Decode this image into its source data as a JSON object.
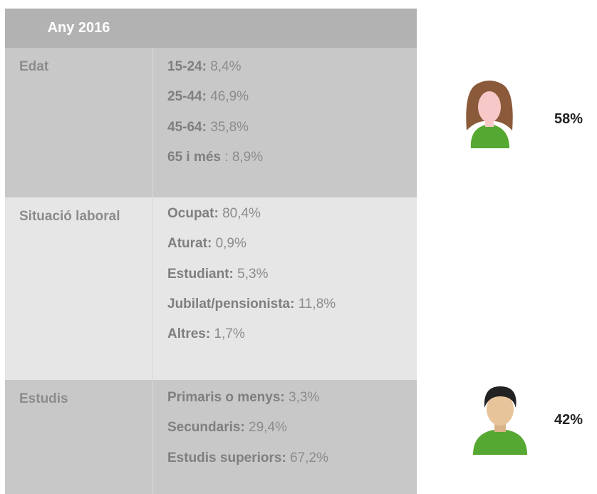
{
  "header": {
    "title": "Any 2016"
  },
  "table": {
    "rows": [
      {
        "label": "Edat",
        "items": [
          {
            "label": "15-24:",
            "value": "8,4%"
          },
          {
            "label": "25-44:",
            "value": "46,9%"
          },
          {
            "label": "45-64:",
            "value": "35,8%"
          },
          {
            "label": "65 i més",
            "value": ": 8,9%"
          }
        ]
      },
      {
        "label": "Situació laboral",
        "items": [
          {
            "label": "Ocupat:",
            "value": "80,4%"
          },
          {
            "label": "Aturat:",
            "value": "0,9%"
          },
          {
            "label": "Estudiant:",
            "value": "5,3%"
          },
          {
            "label": "Jubilat/pensionista:",
            "value": "11,8%"
          },
          {
            "label": "Altres:",
            "value": "1,7%"
          }
        ]
      },
      {
        "label": "Estudis",
        "items": [
          {
            "label": "Primaris o menys:",
            "value": "3,3%"
          },
          {
            "label": "Secundaris:",
            "value": "29,4%"
          },
          {
            "label": "Estudis superiors:",
            "value": "67,2%"
          }
        ]
      }
    ]
  },
  "stats": [
    {
      "value": "58%"
    },
    {
      "value": "42%"
    }
  ]
}
